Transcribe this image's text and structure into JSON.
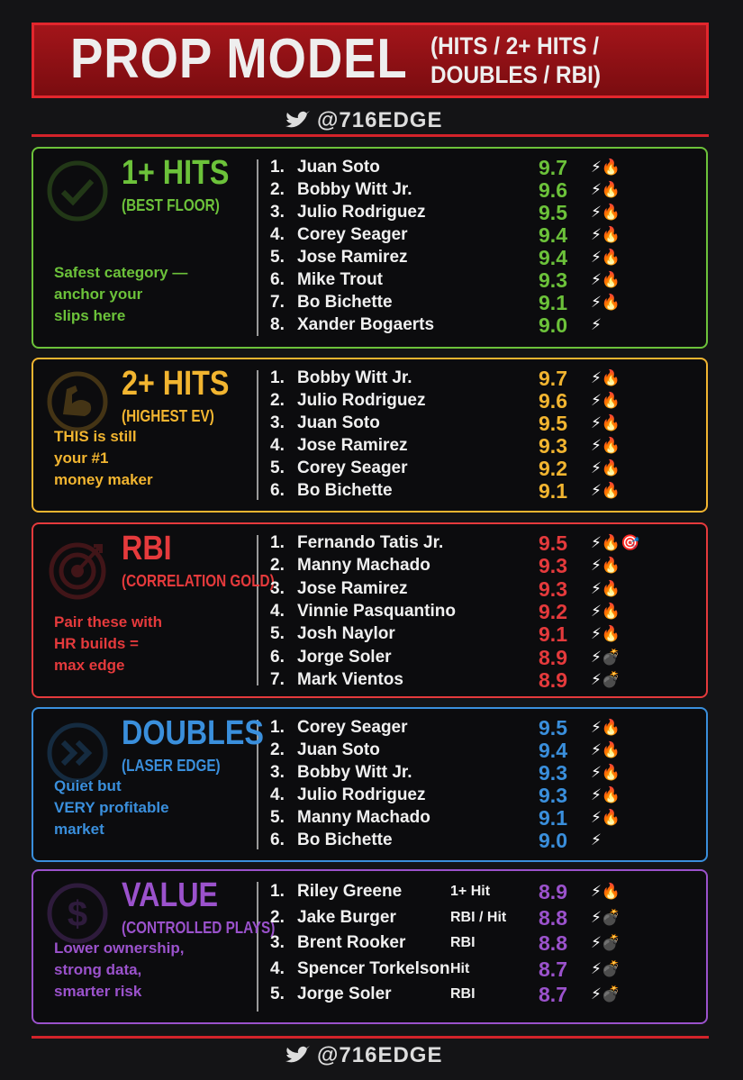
{
  "header": {
    "title": "PROP MODEL",
    "subtitle_lines": [
      "(HITS / 2+ HITS /",
      "DOUBLES / RBI)"
    ],
    "handle": "@716EDGE"
  },
  "sections": [
    {
      "title": "1+ HITS",
      "subtitle": "(BEST FLOOR)",
      "color": "#6cc23a",
      "description": [
        "Safest category —",
        "anchor your",
        "slips here"
      ],
      "players": [
        {
          "rank": "1.",
          "name": "Juan Soto",
          "score": "9.7",
          "icons": "⚡🔥"
        },
        {
          "rank": "2.",
          "name": "Bobby Witt Jr.",
          "score": "9.6",
          "icons": "⚡🔥"
        },
        {
          "rank": "3.",
          "name": "Julio Rodriguez",
          "score": "9.5",
          "icons": "⚡🔥"
        },
        {
          "rank": "4.",
          "name": "Corey Seager",
          "score": "9.4",
          "icons": "⚡🔥"
        },
        {
          "rank": "5.",
          "name": "Jose Ramirez",
          "score": "9.4",
          "icons": "⚡🔥"
        },
        {
          "rank": "6.",
          "name": "Mike Trout",
          "score": "9.3",
          "icons": "⚡🔥"
        },
        {
          "rank": "7.",
          "name": "Bo Bichette",
          "score": "9.1",
          "icons": "⚡🔥"
        },
        {
          "rank": "8.",
          "name": "Xander Bogaerts",
          "score": "9.0",
          "icons": "⚡"
        }
      ]
    },
    {
      "title": "2+ HITS",
      "subtitle": "(HIGHEST EV)",
      "color": "#f2b530",
      "description": [
        "THIS is still",
        "your #1",
        "money maker"
      ],
      "players": [
        {
          "rank": "1.",
          "name": "Bobby Witt Jr.",
          "score": "9.7",
          "icons": "⚡🔥"
        },
        {
          "rank": "2.",
          "name": "Julio Rodriguez",
          "score": "9.6",
          "icons": "⚡🔥"
        },
        {
          "rank": "3.",
          "name": "Juan Soto",
          "score": "9.5",
          "icons": "⚡🔥"
        },
        {
          "rank": "4.",
          "name": "Jose Ramirez",
          "score": "9.3",
          "icons": "⚡🔥"
        },
        {
          "rank": "5.",
          "name": "Corey Seager",
          "score": "9.2",
          "icons": "⚡🔥"
        },
        {
          "rank": "6.",
          "name": "Bo Bichette",
          "score": "9.1",
          "icons": "⚡🔥"
        }
      ]
    },
    {
      "title": "RBI",
      "subtitle": "(CORRELATION GOLD)",
      "color": "#e53a3c",
      "description": [
        "Pair these with",
        "HR builds =",
        "max edge"
      ],
      "players": [
        {
          "rank": "1.",
          "name": "Fernando Tatis Jr.",
          "score": "9.5",
          "icons": "⚡🔥🎯"
        },
        {
          "rank": "2.",
          "name": "Manny Machado",
          "score": "9.3",
          "icons": "⚡🔥"
        },
        {
          "rank": "3.",
          "name": "Jose Ramirez",
          "score": "9.3",
          "icons": "⚡🔥"
        },
        {
          "rank": "4.",
          "name": "Vinnie Pasquantino",
          "score": "9.2",
          "icons": "⚡🔥"
        },
        {
          "rank": "5.",
          "name": "Josh Naylor",
          "score": "9.1",
          "icons": "⚡🔥"
        },
        {
          "rank": "6.",
          "name": "Jorge Soler",
          "score": "8.9",
          "icons": "⚡💣"
        },
        {
          "rank": "7.",
          "name": "Mark Vientos",
          "score": "8.9",
          "icons": "⚡💣"
        }
      ]
    },
    {
      "title": "DOUBLES",
      "subtitle": "(LASER EDGE)",
      "color": "#3a8fdc",
      "description": [
        "Quiet but",
        "VERY profitable",
        "market"
      ],
      "players": [
        {
          "rank": "1.",
          "name": "Corey Seager",
          "score": "9.5",
          "icons": "⚡🔥"
        },
        {
          "rank": "2.",
          "name": "Juan Soto",
          "score": "9.4",
          "icons": "⚡🔥"
        },
        {
          "rank": "3.",
          "name": "Bobby Witt Jr.",
          "score": "9.3",
          "icons": "⚡🔥"
        },
        {
          "rank": "4.",
          "name": "Julio Rodriguez",
          "score": "9.3",
          "icons": "⚡🔥"
        },
        {
          "rank": "5.",
          "name": "Manny Machado",
          "score": "9.1",
          "icons": "⚡🔥"
        },
        {
          "rank": "6.",
          "name": "Bo Bichette",
          "score": "9.0",
          "icons": "⚡"
        }
      ]
    },
    {
      "title": "VALUE",
      "subtitle": "(CONTROLLED PLAYS)",
      "color": "#9b52cc",
      "description": [
        "Lower ownership,",
        "strong data,",
        "smarter risk"
      ],
      "players": [
        {
          "rank": "1.",
          "name": "Riley Greene",
          "note": "1+ Hit",
          "score": "8.9",
          "icons": "⚡🔥"
        },
        {
          "rank": "2.",
          "name": "Jake Burger",
          "note": "RBI / Hit",
          "score": "8.8",
          "icons": "⚡💣"
        },
        {
          "rank": "3.",
          "name": "Brent Rooker",
          "note": "RBI",
          "score": "8.8",
          "icons": "⚡💣"
        },
        {
          "rank": "4.",
          "name": "Spencer Torkelson",
          "note": "Hit",
          "score": "8.7",
          "icons": "⚡💣"
        },
        {
          "rank": "5.",
          "name": "Jorge Soler",
          "note": "RBI",
          "score": "8.7",
          "icons": "⚡💣"
        }
      ]
    }
  ],
  "footer": {
    "handle": "@716EDGE"
  }
}
